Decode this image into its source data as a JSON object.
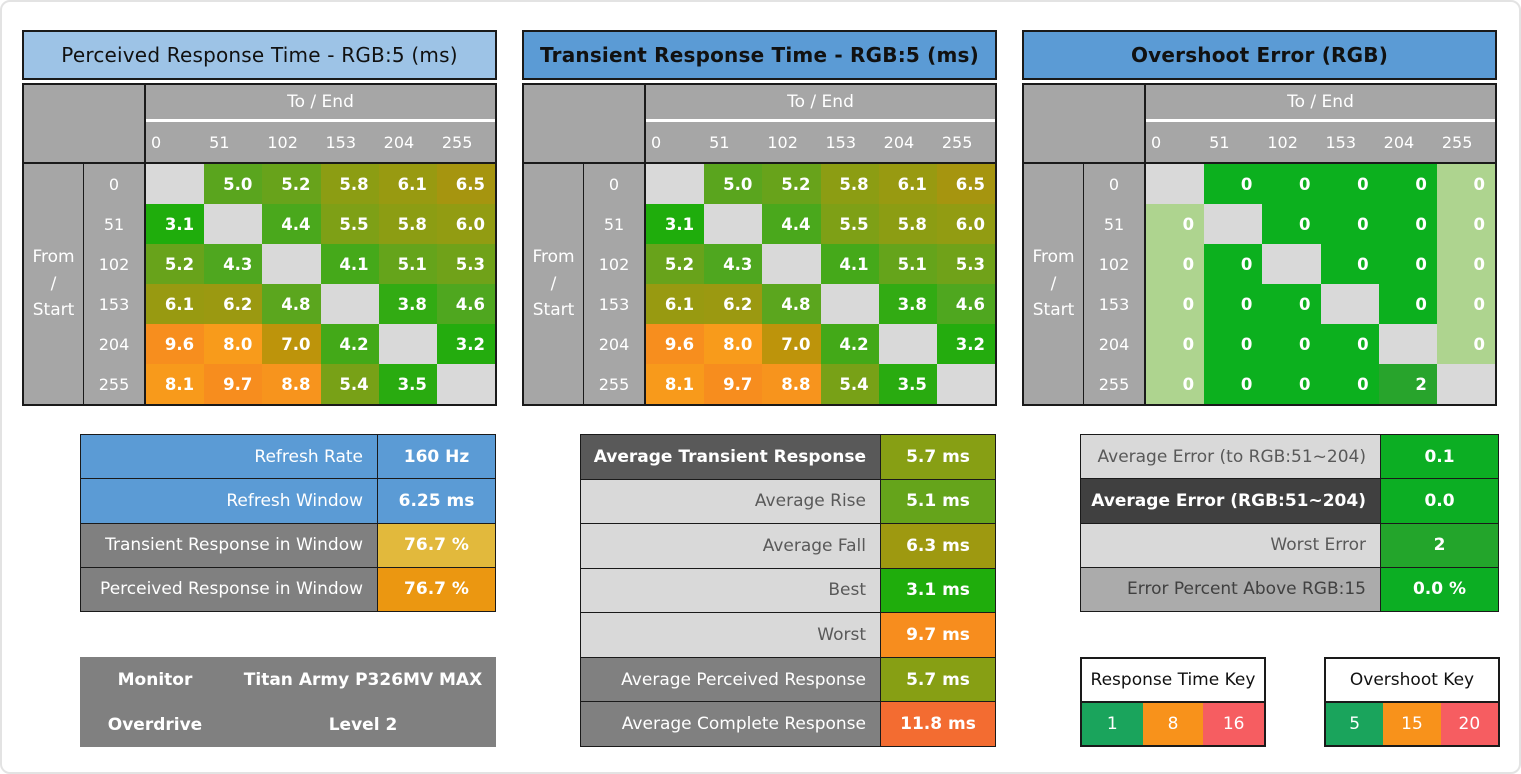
{
  "window": {
    "background": "#FFFFFF",
    "border_color": "#E3E3E3"
  },
  "chart_data": [
    {
      "type": "heatmap",
      "title": "Perceived Response Time - RGB:5 (ms)",
      "unit": "ms",
      "title_bg": "#9DC3E6",
      "title_bold": false,
      "col_axis_label": "To / End",
      "row_axis_label": "From / Start",
      "row_axis_lines": [
        "From",
        "/",
        "Start"
      ],
      "columns": [
        "0",
        "51",
        "102",
        "153",
        "204",
        "255"
      ],
      "rows": [
        "0",
        "51",
        "102",
        "153",
        "204",
        "255"
      ],
      "diagonal_color": "#D9D9D9",
      "cells": [
        [
          null,
          {
            "v": 5.0,
            "label": "5.0",
            "color": "#5AA51E"
          },
          {
            "v": 5.2,
            "label": "5.2",
            "color": "#68A31B"
          },
          {
            "v": 5.8,
            "label": "5.8",
            "color": "#8C9D13"
          },
          {
            "v": 6.1,
            "label": "6.1",
            "color": "#989A11"
          },
          {
            "v": 6.5,
            "label": "6.5",
            "color": "#A6950F"
          }
        ],
        [
          {
            "v": 3.1,
            "label": "3.1",
            "color": "#1FAD0C"
          },
          null,
          {
            "v": 4.4,
            "label": "4.4",
            "color": "#4AA81C"
          },
          {
            "v": 5.5,
            "label": "5.5",
            "color": "#7EA016"
          },
          {
            "v": 5.8,
            "label": "5.8",
            "color": "#8C9D13"
          },
          {
            "v": 6.0,
            "label": "6.0",
            "color": "#929C12"
          }
        ],
        [
          {
            "v": 5.2,
            "label": "5.2",
            "color": "#68A31B"
          },
          {
            "v": 4.3,
            "label": "4.3",
            "color": "#4FA71F"
          },
          null,
          {
            "v": 4.1,
            "label": "4.1",
            "color": "#45A91A"
          },
          {
            "v": 5.1,
            "label": "5.1",
            "color": "#65A41B"
          },
          {
            "v": 5.3,
            "label": "5.3",
            "color": "#70A219"
          }
        ],
        [
          {
            "v": 6.1,
            "label": "6.1",
            "color": "#989A11"
          },
          {
            "v": 6.2,
            "label": "6.2",
            "color": "#9B9911"
          },
          {
            "v": 4.8,
            "label": "4.8",
            "color": "#5BA61E"
          },
          null,
          {
            "v": 3.8,
            "label": "3.8",
            "color": "#32AB13"
          },
          {
            "v": 4.6,
            "label": "4.6",
            "color": "#4FA71F"
          }
        ],
        [
          {
            "v": 9.6,
            "label": "9.6",
            "color": "#F78E1E"
          },
          {
            "v": 8.0,
            "label": "8.0",
            "color": "#F89B1B"
          },
          {
            "v": 7.0,
            "label": "7.0",
            "color": "#BD940B"
          },
          {
            "v": 4.2,
            "label": "4.2",
            "color": "#43A918"
          },
          null,
          {
            "v": 3.2,
            "label": "3.2",
            "color": "#24AC0E"
          }
        ],
        [
          {
            "v": 8.1,
            "label": "8.1",
            "color": "#F89A1B"
          },
          {
            "v": 9.7,
            "label": "9.7",
            "color": "#F78D1E"
          },
          {
            "v": 8.8,
            "label": "8.8",
            "color": "#F7941D"
          },
          {
            "v": 5.4,
            "label": "5.4",
            "color": "#78A117"
          },
          {
            "v": 3.5,
            "label": "3.5",
            "color": "#29AB10"
          },
          null
        ]
      ]
    },
    {
      "type": "heatmap",
      "title": "Transient Response Time - RGB:5 (ms)",
      "unit": "ms",
      "title_bg": "#5B9BD5",
      "title_bold": true,
      "col_axis_label": "To / End",
      "row_axis_label": "From / Start",
      "row_axis_lines": [
        "From",
        "/",
        "Start"
      ],
      "columns": [
        "0",
        "51",
        "102",
        "153",
        "204",
        "255"
      ],
      "rows": [
        "0",
        "51",
        "102",
        "153",
        "204",
        "255"
      ],
      "diagonal_color": "#D9D9D9",
      "cells": [
        [
          null,
          {
            "v": 5.0,
            "label": "5.0",
            "color": "#5AA51E"
          },
          {
            "v": 5.2,
            "label": "5.2",
            "color": "#68A31B"
          },
          {
            "v": 5.8,
            "label": "5.8",
            "color": "#8C9D13"
          },
          {
            "v": 6.1,
            "label": "6.1",
            "color": "#989A11"
          },
          {
            "v": 6.5,
            "label": "6.5",
            "color": "#A6950F"
          }
        ],
        [
          {
            "v": 3.1,
            "label": "3.1",
            "color": "#1FAD0C"
          },
          null,
          {
            "v": 4.4,
            "label": "4.4",
            "color": "#4AA81C"
          },
          {
            "v": 5.5,
            "label": "5.5",
            "color": "#7EA016"
          },
          {
            "v": 5.8,
            "label": "5.8",
            "color": "#8C9D13"
          },
          {
            "v": 6.0,
            "label": "6.0",
            "color": "#929C12"
          }
        ],
        [
          {
            "v": 5.2,
            "label": "5.2",
            "color": "#68A31B"
          },
          {
            "v": 4.3,
            "label": "4.3",
            "color": "#4FA71F"
          },
          null,
          {
            "v": 4.1,
            "label": "4.1",
            "color": "#45A91A"
          },
          {
            "v": 5.1,
            "label": "5.1",
            "color": "#65A41B"
          },
          {
            "v": 5.3,
            "label": "5.3",
            "color": "#70A219"
          }
        ],
        [
          {
            "v": 6.1,
            "label": "6.1",
            "color": "#989A11"
          },
          {
            "v": 6.2,
            "label": "6.2",
            "color": "#9B9911"
          },
          {
            "v": 4.8,
            "label": "4.8",
            "color": "#5BA61E"
          },
          null,
          {
            "v": 3.8,
            "label": "3.8",
            "color": "#32AB13"
          },
          {
            "v": 4.6,
            "label": "4.6",
            "color": "#4FA71F"
          }
        ],
        [
          {
            "v": 9.6,
            "label": "9.6",
            "color": "#F78E1E"
          },
          {
            "v": 8.0,
            "label": "8.0",
            "color": "#F89B1B"
          },
          {
            "v": 7.0,
            "label": "7.0",
            "color": "#BD940B"
          },
          {
            "v": 4.2,
            "label": "4.2",
            "color": "#43A918"
          },
          null,
          {
            "v": 3.2,
            "label": "3.2",
            "color": "#24AC0E"
          }
        ],
        [
          {
            "v": 8.1,
            "label": "8.1",
            "color": "#F89A1B"
          },
          {
            "v": 9.7,
            "label": "9.7",
            "color": "#F78D1E"
          },
          {
            "v": 8.8,
            "label": "8.8",
            "color": "#F7941D"
          },
          {
            "v": 5.4,
            "label": "5.4",
            "color": "#78A117"
          },
          {
            "v": 3.5,
            "label": "3.5",
            "color": "#29AB10"
          },
          null
        ]
      ]
    },
    {
      "type": "heatmap",
      "title": "Overshoot Error (RGB)",
      "unit": "RGB",
      "title_bg": "#5B9BD5",
      "title_bold": true,
      "col_axis_label": "To / End",
      "row_axis_label": "From / Start",
      "row_axis_lines": [
        "From",
        "/",
        "Start"
      ],
      "columns": [
        "0",
        "51",
        "102",
        "153",
        "204",
        "255"
      ],
      "rows": [
        "0",
        "51",
        "102",
        "153",
        "204",
        "255"
      ],
      "diagonal_color": "#D9D9D9",
      "cells": [
        [
          null,
          {
            "v": 0,
            "label": "0",
            "color": "#0CB01E"
          },
          {
            "v": 0,
            "label": "0",
            "color": "#0CB01E"
          },
          {
            "v": 0,
            "label": "0",
            "color": "#0CB01E"
          },
          {
            "v": 0,
            "label": "0",
            "color": "#0CB01E"
          },
          {
            "v": 0,
            "label": "0",
            "color": "#AED48F"
          }
        ],
        [
          {
            "v": 0,
            "label": "0",
            "color": "#AED48F"
          },
          null,
          {
            "v": 0,
            "label": "0",
            "color": "#0CB01E"
          },
          {
            "v": 0,
            "label": "0",
            "color": "#0CB01E"
          },
          {
            "v": 0,
            "label": "0",
            "color": "#0CB01E"
          },
          {
            "v": 0,
            "label": "0",
            "color": "#AED48F"
          }
        ],
        [
          {
            "v": 0,
            "label": "0",
            "color": "#AED48F"
          },
          {
            "v": 0,
            "label": "0",
            "color": "#0CB01E"
          },
          null,
          {
            "v": 0,
            "label": "0",
            "color": "#0CB01E"
          },
          {
            "v": 0,
            "label": "0",
            "color": "#0CB01E"
          },
          {
            "v": 0,
            "label": "0",
            "color": "#AED48F"
          }
        ],
        [
          {
            "v": 0,
            "label": "0",
            "color": "#AED48F"
          },
          {
            "v": 0,
            "label": "0",
            "color": "#0CB01E"
          },
          {
            "v": 0,
            "label": "0",
            "color": "#0CB01E"
          },
          null,
          {
            "v": 0,
            "label": "0",
            "color": "#0CB01E"
          },
          {
            "v": 0,
            "label": "0",
            "color": "#AED48F"
          }
        ],
        [
          {
            "v": 0,
            "label": "0",
            "color": "#AED48F"
          },
          {
            "v": 0,
            "label": "0",
            "color": "#0CB01E"
          },
          {
            "v": 0,
            "label": "0",
            "color": "#0CB01E"
          },
          {
            "v": 0,
            "label": "0",
            "color": "#0CB01E"
          },
          null,
          {
            "v": 0,
            "label": "0",
            "color": "#AED48F"
          }
        ],
        [
          {
            "v": 0,
            "label": "0",
            "color": "#AED48F"
          },
          {
            "v": 0,
            "label": "0",
            "color": "#0CB01E"
          },
          {
            "v": 0,
            "label": "0",
            "color": "#0CB01E"
          },
          {
            "v": 0,
            "label": "0",
            "color": "#0CB01E"
          },
          {
            "v": 2,
            "label": "2",
            "color": "#28A42C"
          },
          null
        ]
      ]
    }
  ],
  "summaries": {
    "left": {
      "rows": [
        {
          "label": "Refresh Rate",
          "value": "160 Hz",
          "label_bg": "#5B9BD5",
          "label_color": "#FFFFFF",
          "value_bg": "#5B9BD5"
        },
        {
          "label": "Refresh Window",
          "value": "6.25 ms",
          "label_bg": "#5B9BD5",
          "label_color": "#FFFFFF",
          "value_bg": "#5B9BD5"
        },
        {
          "label": "Transient Response in Window",
          "value": "76.7 %",
          "label_bg": "#808080",
          "label_color": "#FFFFFF",
          "value_bg": "#E2B93C"
        },
        {
          "label": "Perceived Response in Window",
          "value": "76.7 %",
          "label_bg": "#808080",
          "label_color": "#FFFFFF",
          "value_bg": "#EB9711"
        }
      ]
    },
    "middle": {
      "rows": [
        {
          "label": "Average Transient Response",
          "value": "5.7 ms",
          "label_bg": "#595959",
          "label_color": "#FFFFFF",
          "label_bold": true,
          "value_bg": "#879F14"
        },
        {
          "label": "Average Rise",
          "value": "5.1 ms",
          "label_bg": "#D9D9D9",
          "label_color": "#595959",
          "value_bg": "#65A41B"
        },
        {
          "label": "Average Fall",
          "value": "6.3 ms",
          "label_bg": "#D9D9D9",
          "label_color": "#595959",
          "value_bg": "#9E9910"
        },
        {
          "label": "Best",
          "value": "3.1 ms",
          "label_bg": "#D9D9D9",
          "label_color": "#595959",
          "value_bg": "#1FAD0C"
        },
        {
          "label": "Worst",
          "value": "9.7 ms",
          "label_bg": "#D9D9D9",
          "label_color": "#595959",
          "value_bg": "#F78D1E"
        },
        {
          "label": "Average Perceived Response",
          "value": "5.7 ms",
          "label_bg": "#808080",
          "label_color": "#FFFFFF",
          "value_bg": "#879F14"
        },
        {
          "label": "Average Complete Response",
          "value": "11.8 ms",
          "label_bg": "#808080",
          "label_color": "#FFFFFF",
          "value_bg": "#F36C31"
        }
      ]
    },
    "right": {
      "rows": [
        {
          "label": "Average Error (to RGB:51~204)",
          "value": "0.1",
          "label_bg": "#D9D9D9",
          "label_color": "#595959",
          "value_bg": "#0CAE23"
        },
        {
          "label": "Average Error (RGB:51~204)",
          "value": "0.0",
          "label_bg": "#404040",
          "label_color": "#FFFFFF",
          "label_bold": true,
          "value_bg": "#0CAE23"
        },
        {
          "label": "Worst Error",
          "value": "2",
          "label_bg": "#D9D9D9",
          "label_color": "#595959",
          "value_bg": "#23A52B"
        },
        {
          "label": "Error Percent Above RGB:15",
          "value": "0.0 %",
          "label_bg": "#ABABAB",
          "label_color": "#404040",
          "value_bg": "#0CAE23"
        }
      ]
    }
  },
  "monitor_info": {
    "bg": "#808080",
    "rows": [
      {
        "label": "Monitor",
        "value": "Titan Army P326MV MAX"
      },
      {
        "label": "Overdrive",
        "value": "Level 2"
      }
    ]
  },
  "keys": [
    {
      "title": "Response Time Key",
      "cells": [
        {
          "label": "1",
          "color": "#1AA45C"
        },
        {
          "label": "8",
          "color": "#F8921B"
        },
        {
          "label": "16",
          "color": "#F65D61"
        }
      ]
    },
    {
      "title": "Overshoot Key",
      "cells": [
        {
          "label": "5",
          "color": "#1AA45C"
        },
        {
          "label": "15",
          "color": "#F8921B"
        },
        {
          "label": "20",
          "color": "#F65D61"
        }
      ]
    }
  ]
}
